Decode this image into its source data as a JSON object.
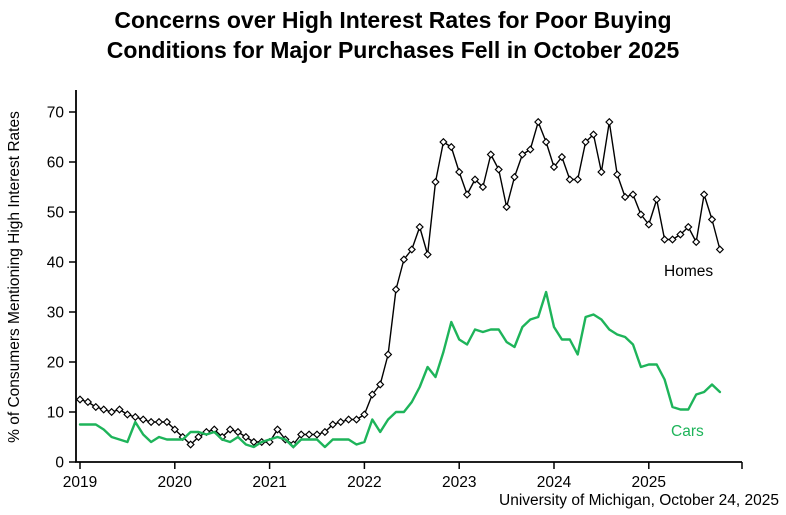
{
  "title": {
    "line1": "Concerns over High Interest Rates for Poor Buying",
    "line2": "Conditions for Major Purchases Fell in October 2025"
  },
  "y_axis_label": "% of Consumers Mentioning High Interest Rates",
  "attribution": "University of Michigan, October 24, 2025",
  "series_labels": {
    "homes": "Homes",
    "cars": "Cars"
  },
  "colors": {
    "homes": "#000000",
    "cars": "#1eb45a",
    "axis": "#000000"
  },
  "chart_data": {
    "type": "line",
    "title": "Concerns over High Interest Rates for Poor Buying Conditions for Major Purchases Fell in October 2025",
    "xlabel": "",
    "ylabel": "% of Consumers Mentioning High Interest Rates",
    "x_unit": "month",
    "x_start_label": "Jan 2019",
    "x_end_label": "Oct 2025",
    "x_tick_labels": [
      "2019",
      "2020",
      "2021",
      "2022",
      "2023",
      "2024",
      "2025"
    ],
    "y_ticks": [
      0,
      10,
      20,
      30,
      40,
      50,
      60,
      70
    ],
    "ylim": [
      0,
      73
    ],
    "grid": false,
    "legend_position": "inline-labels",
    "series": [
      {
        "name": "Homes",
        "color": "#000000",
        "marker": "diamond-open",
        "values": [
          12.5,
          12,
          11,
          10.5,
          10,
          10.5,
          9.5,
          9,
          8.5,
          8,
          8,
          8,
          6.5,
          5,
          3.5,
          5,
          6,
          6.5,
          5,
          6.5,
          6,
          5,
          4,
          4,
          4,
          6.5,
          4.5,
          3.5,
          5.5,
          5.5,
          5.5,
          6,
          7.5,
          8,
          8.5,
          8.5,
          9.5,
          13.5,
          15.5,
          21.5,
          34.5,
          40.5,
          42.5,
          47,
          41.5,
          56,
          64,
          63,
          58,
          53.5,
          56.5,
          55,
          61.5,
          58.5,
          51,
          57,
          61.5,
          62.5,
          68,
          64,
          59,
          61,
          56.5,
          56.5,
          64,
          65.5,
          58,
          68,
          57.5,
          53,
          53.5,
          49.5,
          47.5,
          52.5,
          44.5,
          44.5,
          45.5,
          47,
          44,
          53.5,
          48.5,
          42.5
        ]
      },
      {
        "name": "Cars",
        "color": "#1eb45a",
        "marker": "none",
        "values": [
          7.5,
          7.5,
          7.5,
          6.5,
          5,
          4.5,
          4,
          8,
          5.5,
          4,
          5,
          4.5,
          4.5,
          4.5,
          6,
          6,
          5.5,
          6,
          4.5,
          4,
          5,
          3.5,
          3,
          4,
          4.5,
          5,
          4.5,
          3,
          4.5,
          4.5,
          4.5,
          3,
          4.5,
          4.5,
          4.5,
          3.5,
          4,
          8.5,
          6,
          8.5,
          10,
          10,
          12,
          15,
          19,
          17,
          22,
          28,
          24.5,
          23.5,
          26.5,
          26,
          26.5,
          26.5,
          24,
          23,
          27,
          28.5,
          29,
          34,
          27,
          24.5,
          24.5,
          21.5,
          29,
          29.5,
          28.5,
          26.5,
          25.5,
          25,
          23.5,
          19,
          19.5,
          19.5,
          16.5,
          11,
          10.5,
          10.5,
          13.5,
          14,
          15.5,
          14
        ]
      }
    ]
  }
}
